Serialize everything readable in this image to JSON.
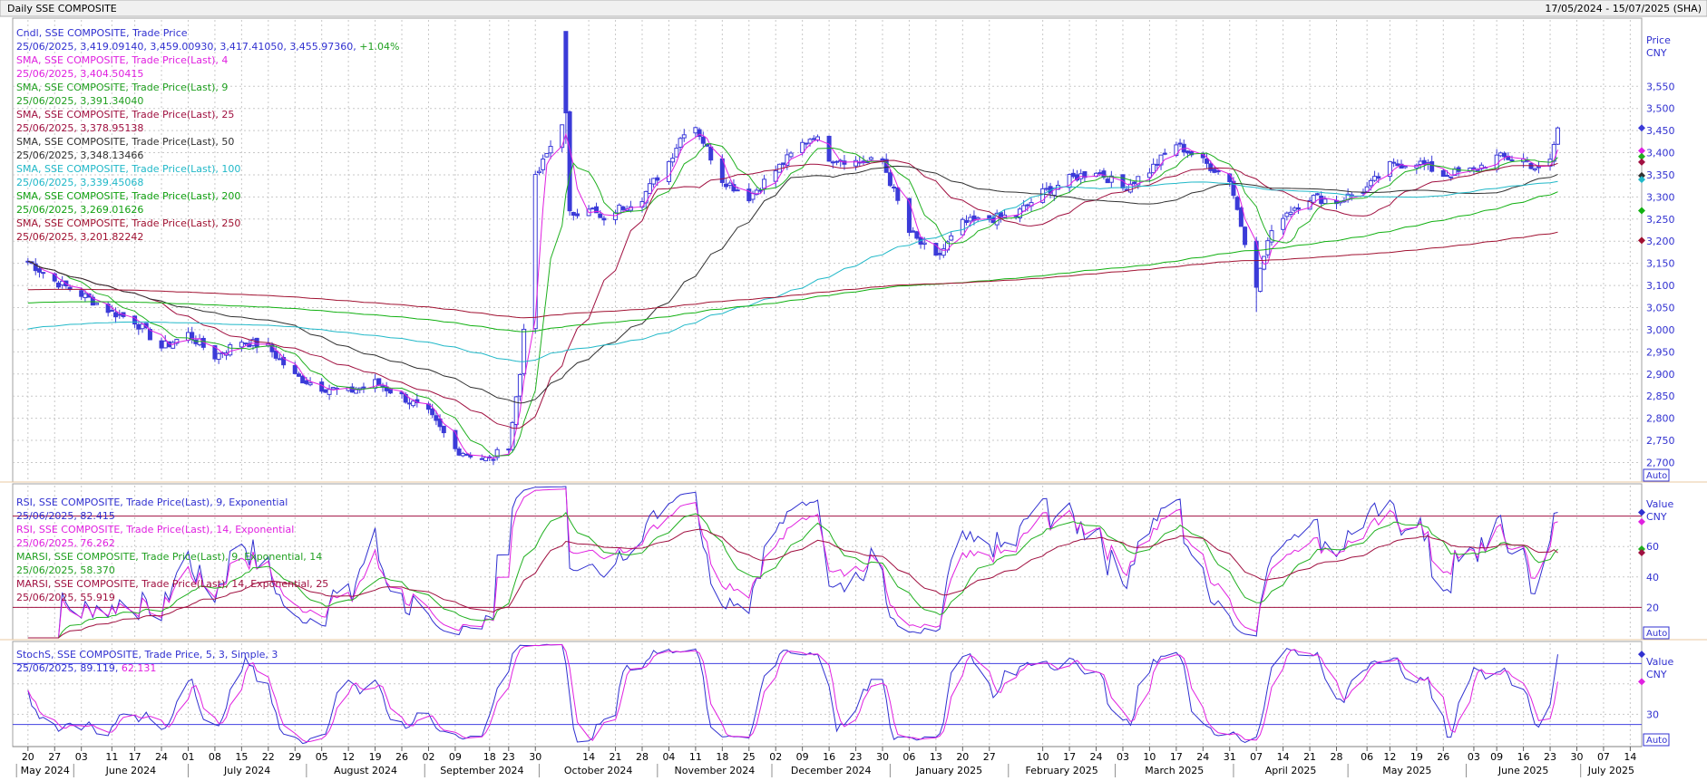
{
  "window": {
    "title": "Daily SSE COMPOSITE",
    "date_range": "17/05/2024 - 15/07/2025 (SHA)"
  },
  "colors": {
    "candle": "#3b3bd8",
    "sma4": "#e020e0",
    "sma9": "#20b020",
    "sma25": "#a01040",
    "sma50": "#303030",
    "sma100": "#20b8c8",
    "sma200": "#10b010",
    "sma250": "#a01030",
    "rsi9": "#3030d0",
    "rsi14": "#e020e0",
    "marsi9": "#20b020",
    "marsi14": "#a01040",
    "stochK": "#3030d0",
    "stochD": "#e020e0",
    "level_line_red": "#a01040",
    "level_line_blue": "#4040e0",
    "grid": "#c8c8c8"
  },
  "main_panel": {
    "legend": [
      {
        "text": "Cndl, SSE COMPOSITE, Trade Price",
        "color": "#3030d0"
      },
      {
        "text": "25/06/2025, 3,419.09140, 3,459.00930, 3,417.41050, 3,455.97360,",
        "extra": "+1.04%",
        "color": "#3030d0",
        "extra_color": "#20a020"
      },
      {
        "text": "SMA, SSE COMPOSITE, Trade Price(Last), 4",
        "color": "#e020e0"
      },
      {
        "text": "25/06/2025, 3,404.50415",
        "color": "#e020e0"
      },
      {
        "text": "SMA, SSE COMPOSITE, Trade Price(Last), 9",
        "color": "#20a020"
      },
      {
        "text": "25/06/2025, 3,391.34040",
        "color": "#20a020"
      },
      {
        "text": "SMA, SSE COMPOSITE, Trade Price(Last), 25",
        "color": "#a01040"
      },
      {
        "text": "25/06/2025, 3,378.95138",
        "color": "#a01040"
      },
      {
        "text": "SMA, SSE COMPOSITE, Trade Price(Last), 50",
        "color": "#303030"
      },
      {
        "text": "25/06/2025, 3,348.13466",
        "color": "#303030"
      },
      {
        "text": "SMA, SSE COMPOSITE, Trade Price(Last), 100",
        "color": "#20b8c8"
      },
      {
        "text": "25/06/2025, 3,339.45068",
        "color": "#20b8c8"
      },
      {
        "text": "SMA, SSE COMPOSITE, Trade Price(Last), 200",
        "color": "#10a010"
      },
      {
        "text": "25/06/2025, 3,269.01626",
        "color": "#10a010"
      },
      {
        "text": "SMA, SSE COMPOSITE, Trade Price(Last), 250",
        "color": "#a01030"
      },
      {
        "text": "25/06/2025, 3,201.82242",
        "color": "#a01030"
      }
    ],
    "axis_title": "Price",
    "axis_unit": "CNY",
    "auto_label": "Auto"
  },
  "rsi_panel": {
    "legend": [
      {
        "text": "RSI, SSE COMPOSITE, Trade Price(Last), 9, Exponential",
        "color": "#3030d0"
      },
      {
        "text": "25/06/2025, 82.415",
        "color": "#3030d0"
      },
      {
        "text": "RSI, SSE COMPOSITE, Trade Price(Last), 14, Exponential",
        "color": "#e020e0"
      },
      {
        "text": "25/06/2025, 76.262",
        "color": "#e020e0"
      },
      {
        "text": "MARSI, SSE COMPOSITE, Trade Price(Last), 9, Exponential, 14",
        "color": "#20a020"
      },
      {
        "text": "25/06/2025, 58.370",
        "color": "#20a020"
      },
      {
        "text": "MARSI, SSE COMPOSITE, Trade Price(Last), 14, Exponential, 25",
        "color": "#a01040"
      },
      {
        "text": "25/06/2025, 55.919",
        "color": "#a01040"
      }
    ],
    "axis_title": "Value",
    "axis_unit": "CNY",
    "auto_label": "Auto"
  },
  "stoch_panel": {
    "legend": [
      {
        "text": "StochS, SSE COMPOSITE, Trade Price, 5, 3, Simple, 3",
        "color": "#3030d0"
      },
      {
        "text": "25/06/2025,",
        "extra": "89.119,",
        "extra2": "62.131",
        "color": "#3030d0",
        "extra_color": "#3030d0",
        "extra2_color": "#e020e0"
      }
    ],
    "axis_title": "Value",
    "axis_unit": "CNY",
    "auto_label": "Auto"
  },
  "chart_data": [
    {
      "type": "candlestick",
      "title": "Daily SSE COMPOSITE",
      "ylabel": "Price CNY",
      "ylim": [
        2660,
        3700
      ],
      "yticks": [
        2700,
        2750,
        2800,
        2850,
        2900,
        2950,
        3000,
        3050,
        3100,
        3150,
        3200,
        3250,
        3300,
        3350,
        3400,
        3450,
        3500,
        3550
      ],
      "ytick_labels": [
        "2,700",
        "2,750",
        "2,800",
        "2,850",
        "2,900",
        "2,950",
        "3,000",
        "3,050",
        "3,100",
        "3,150",
        "3,200",
        "3,250",
        "3,300",
        "3,350",
        "3,400",
        "3,450",
        "3,500",
        "3,550"
      ],
      "close_path": [
        [
          "2024-05-20",
          3155
        ],
        [
          "2024-05-27",
          3110
        ],
        [
          "2024-06-03",
          3080
        ],
        [
          "2024-06-11",
          3040
        ],
        [
          "2024-06-17",
          3020
        ],
        [
          "2024-06-24",
          2960
        ],
        [
          "2024-07-01",
          2990
        ],
        [
          "2024-07-08",
          2940
        ],
        [
          "2024-07-15",
          2975
        ],
        [
          "2024-07-22",
          2960
        ],
        [
          "2024-07-29",
          2895
        ],
        [
          "2024-08-05",
          2870
        ],
        [
          "2024-08-12",
          2860
        ],
        [
          "2024-08-19",
          2880
        ],
        [
          "2024-08-26",
          2850
        ],
        [
          "2024-09-02",
          2810
        ],
        [
          "2024-09-09",
          2730
        ],
        [
          "2024-09-18",
          2705
        ],
        [
          "2024-09-23",
          2740
        ],
        [
          "2024-09-26",
          2900
        ],
        [
          "2024-09-30",
          3340
        ],
        [
          "2024-10-08",
          3490
        ],
        [
          "2024-10-09",
          3260
        ],
        [
          "2024-10-14",
          3280
        ],
        [
          "2024-10-18",
          3240
        ],
        [
          "2024-10-21",
          3270
        ],
        [
          "2024-10-28",
          3300
        ],
        [
          "2024-11-04",
          3380
        ],
        [
          "2024-11-08",
          3450
        ],
        [
          "2024-11-11",
          3460
        ],
        [
          "2024-11-18",
          3340
        ],
        [
          "2024-11-25",
          3300
        ],
        [
          "2024-12-02",
          3360
        ],
        [
          "2024-12-09",
          3420
        ],
        [
          "2024-12-12",
          3440
        ],
        [
          "2024-12-16",
          3390
        ],
        [
          "2024-12-23",
          3380
        ],
        [
          "2024-12-30",
          3380
        ],
        [
          "2025-01-06",
          3220
        ],
        [
          "2025-01-13",
          3160
        ],
        [
          "2025-01-20",
          3240
        ],
        [
          "2025-01-27",
          3250
        ],
        [
          "2025-02-03",
          3260
        ],
        [
          "2025-02-10",
          3310
        ],
        [
          "2025-02-17",
          3340
        ],
        [
          "2025-02-24",
          3360
        ],
        [
          "2025-03-03",
          3320
        ],
        [
          "2025-03-10",
          3360
        ],
        [
          "2025-03-17",
          3420
        ],
        [
          "2025-03-24",
          3380
        ],
        [
          "2025-03-31",
          3340
        ],
        [
          "2025-04-07",
          3100
        ],
        [
          "2025-04-10",
          3200
        ],
        [
          "2025-04-14",
          3260
        ],
        [
          "2025-04-21",
          3300
        ],
        [
          "2025-04-28",
          3290
        ],
        [
          "2025-05-06",
          3320
        ],
        [
          "2025-05-12",
          3370
        ],
        [
          "2025-05-19",
          3380
        ],
        [
          "2025-05-26",
          3350
        ],
        [
          "2025-06-03",
          3360
        ],
        [
          "2025-06-09",
          3390
        ],
        [
          "2025-06-16",
          3385
        ],
        [
          "2025-06-20",
          3360
        ],
        [
          "2025-06-23",
          3380
        ],
        [
          "2025-06-25",
          3456
        ]
      ],
      "last_candle": {
        "date": "25/06/2025",
        "open": 3419.0914,
        "high": 3459.0093,
        "low": 3417.4105,
        "close": 3455.9736,
        "change": "+1.04%"
      },
      "series": [
        {
          "name": "SMA 4",
          "last": 3404.50415
        },
        {
          "name": "SMA 9",
          "last": 3391.3404
        },
        {
          "name": "SMA 25",
          "last": 3378.95138
        },
        {
          "name": "SMA 50",
          "last": 3348.13466
        },
        {
          "name": "SMA 100",
          "last": 3339.45068
        },
        {
          "name": "SMA 200",
          "last": 3269.01626
        },
        {
          "name": "SMA 250",
          "last": 3201.82242
        }
      ]
    },
    {
      "type": "line",
      "title": "RSI",
      "ylim": [
        0,
        100
      ],
      "yticks": [
        20,
        40,
        60
      ],
      "ytick_labels": [
        "20",
        "40",
        "60"
      ],
      "levels": [
        20,
        80
      ],
      "series": [
        {
          "name": "RSI 9",
          "last": 82.415
        },
        {
          "name": "RSI 14",
          "last": 76.262
        },
        {
          "name": "MARSI 9/14",
          "last": 58.37
        },
        {
          "name": "MARSI 14/25",
          "last": 55.919
        }
      ]
    },
    {
      "type": "line",
      "title": "StochS",
      "ylim": [
        0,
        100
      ],
      "yticks": [
        30
      ],
      "ytick_labels": [
        "30"
      ],
      "levels": [
        20,
        80
      ],
      "series": [
        {
          "name": "%K",
          "last": 89.119
        },
        {
          "name": "%D",
          "last": 62.131
        }
      ]
    }
  ],
  "x_axis": {
    "ticks": [
      {
        "date": "2024-05-20",
        "label": "20"
      },
      {
        "date": "2024-05-27",
        "label": "27"
      },
      {
        "date": "2024-06-03",
        "label": "03"
      },
      {
        "date": "2024-06-11",
        "label": "11"
      },
      {
        "date": "2024-06-17",
        "label": "17"
      },
      {
        "date": "2024-06-24",
        "label": "24"
      },
      {
        "date": "2024-07-01",
        "label": "01"
      },
      {
        "date": "2024-07-08",
        "label": "08"
      },
      {
        "date": "2024-07-15",
        "label": "15"
      },
      {
        "date": "2024-07-22",
        "label": "22"
      },
      {
        "date": "2024-07-29",
        "label": "29"
      },
      {
        "date": "2024-08-05",
        "label": "05"
      },
      {
        "date": "2024-08-12",
        "label": "12"
      },
      {
        "date": "2024-08-19",
        "label": "19"
      },
      {
        "date": "2024-08-26",
        "label": "26"
      },
      {
        "date": "2024-09-02",
        "label": "02"
      },
      {
        "date": "2024-09-09",
        "label": "09"
      },
      {
        "date": "2024-09-18",
        "label": "18"
      },
      {
        "date": "2024-09-23",
        "label": "23"
      },
      {
        "date": "2024-09-30",
        "label": "30"
      },
      {
        "date": "2024-10-14",
        "label": "14"
      },
      {
        "date": "2024-10-21",
        "label": "21"
      },
      {
        "date": "2024-10-28",
        "label": "28"
      },
      {
        "date": "2024-11-04",
        "label": "04"
      },
      {
        "date": "2024-11-11",
        "label": "11"
      },
      {
        "date": "2024-11-18",
        "label": "18"
      },
      {
        "date": "2024-11-25",
        "label": "25"
      },
      {
        "date": "2024-12-02",
        "label": "02"
      },
      {
        "date": "2024-12-09",
        "label": "09"
      },
      {
        "date": "2024-12-16",
        "label": "16"
      },
      {
        "date": "2024-12-23",
        "label": "23"
      },
      {
        "date": "2024-12-30",
        "label": "30"
      },
      {
        "date": "2025-01-06",
        "label": "06"
      },
      {
        "date": "2025-01-13",
        "label": "13"
      },
      {
        "date": "2025-01-20",
        "label": "20"
      },
      {
        "date": "2025-01-27",
        "label": "27"
      },
      {
        "date": "2025-02-10",
        "label": "10"
      },
      {
        "date": "2025-02-17",
        "label": "17"
      },
      {
        "date": "2025-02-24",
        "label": "24"
      },
      {
        "date": "2025-03-03",
        "label": "03"
      },
      {
        "date": "2025-03-10",
        "label": "10"
      },
      {
        "date": "2025-03-17",
        "label": "17"
      },
      {
        "date": "2025-03-24",
        "label": "24"
      },
      {
        "date": "2025-03-31",
        "label": "31"
      },
      {
        "date": "2025-04-07",
        "label": "07"
      },
      {
        "date": "2025-04-14",
        "label": "14"
      },
      {
        "date": "2025-04-21",
        "label": "21"
      },
      {
        "date": "2025-04-28",
        "label": "28"
      },
      {
        "date": "2025-05-06",
        "label": "06"
      },
      {
        "date": "2025-05-12",
        "label": "12"
      },
      {
        "date": "2025-05-19",
        "label": "19"
      },
      {
        "date": "2025-05-26",
        "label": "26"
      },
      {
        "date": "2025-06-03",
        "label": "03"
      },
      {
        "date": "2025-06-09",
        "label": "09"
      },
      {
        "date": "2025-06-16",
        "label": "16"
      },
      {
        "date": "2025-06-23",
        "label": "23"
      },
      {
        "date": "2025-06-30",
        "label": "30"
      },
      {
        "date": "2025-07-07",
        "label": "07"
      },
      {
        "date": "2025-07-14",
        "label": "14"
      }
    ],
    "months": [
      {
        "date": "2024-05-17",
        "label": "May 2024"
      },
      {
        "date": "2024-06-01",
        "label": "June 2024"
      },
      {
        "date": "2024-07-01",
        "label": "July 2024"
      },
      {
        "date": "2024-08-01",
        "label": "August 2024"
      },
      {
        "date": "2024-09-01",
        "label": "September 2024"
      },
      {
        "date": "2024-10-01",
        "label": "October 2024"
      },
      {
        "date": "2024-11-01",
        "label": "November 2024"
      },
      {
        "date": "2024-12-01",
        "label": "December 2024"
      },
      {
        "date": "2025-01-01",
        "label": "January 2025"
      },
      {
        "date": "2025-02-01",
        "label": "February 2025"
      },
      {
        "date": "2025-03-01",
        "label": "March 2025"
      },
      {
        "date": "2025-04-01",
        "label": "April 2025"
      },
      {
        "date": "2025-05-01",
        "label": "May 2025"
      },
      {
        "date": "2025-06-01",
        "label": "June 2025"
      },
      {
        "date": "2025-07-01",
        "label": "July 2025"
      }
    ]
  }
}
